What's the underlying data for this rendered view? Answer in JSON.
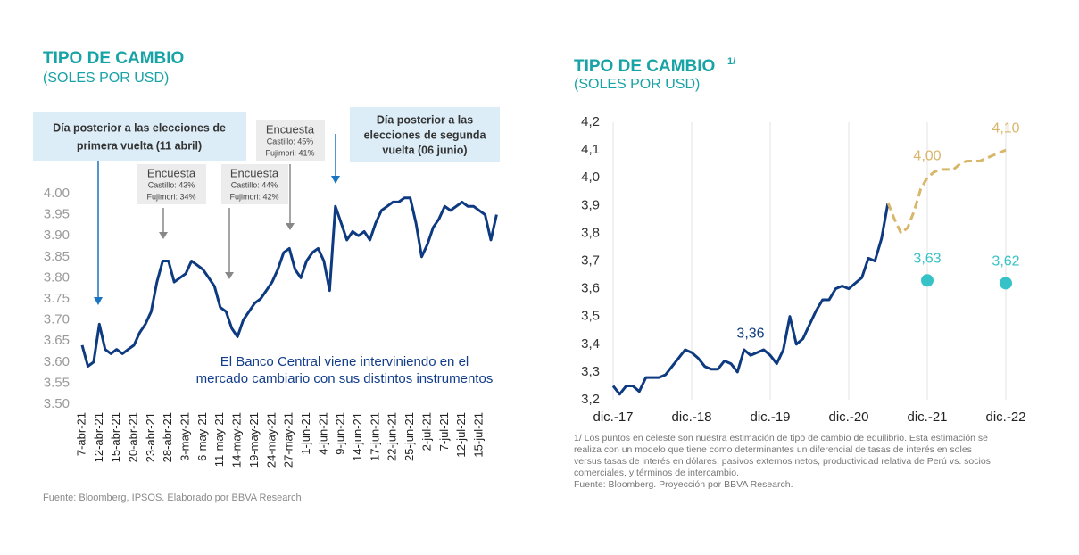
{
  "chart_data": [
    {
      "type": "line",
      "title": "TIPO DE CAMBIO",
      "subtitle": "(SOLES POR USD)",
      "source": "Fuente: Bloomberg, IPSOS. Elaborado por BBVA Research",
      "categories": [
        "7-abr-21",
        null,
        null,
        "12-abr-21",
        null,
        null,
        "15-abr-21",
        null,
        null,
        "20-abr-21",
        null,
        null,
        "23-abr-21",
        null,
        null,
        "28-abr-21",
        null,
        null,
        "3-may-21",
        null,
        null,
        "6-may-21",
        null,
        null,
        "11-may-21",
        null,
        null,
        "14-may-21",
        null,
        null,
        "19-may-21",
        null,
        null,
        "24-may-21",
        null,
        null,
        "27-may-21",
        null,
        null,
        "1-jun-21",
        null,
        null,
        "4-jun-21",
        null,
        null,
        "9-jun-21",
        null,
        null,
        "14-jun-21",
        null,
        null,
        "17-jun-21",
        null,
        null,
        "22-jun-21",
        null,
        null,
        "25-jun-21",
        null,
        null,
        "2-jul-21",
        null,
        null,
        "7-jul-21",
        null,
        null,
        "12-jul-21",
        null,
        null,
        "15-jul-21",
        null,
        null,
        null
      ],
      "series": [
        {
          "color": "#0d3a80",
          "style": "solid",
          "values": [
            3.64,
            3.59,
            3.6,
            3.69,
            3.63,
            3.62,
            3.63,
            3.62,
            3.63,
            3.64,
            3.67,
            3.69,
            3.72,
            3.79,
            3.84,
            3.84,
            3.79,
            3.8,
            3.81,
            3.84,
            3.83,
            3.82,
            3.8,
            3.78,
            3.73,
            3.72,
            3.68,
            3.66,
            3.7,
            3.72,
            3.74,
            3.75,
            3.77,
            3.79,
            3.82,
            3.86,
            3.87,
            3.82,
            3.8,
            3.84,
            3.86,
            3.87,
            3.84,
            3.77,
            3.97,
            3.93,
            3.89,
            3.91,
            3.9,
            3.91,
            3.89,
            3.93,
            3.96,
            3.97,
            3.98,
            3.98,
            3.99,
            3.99,
            3.93,
            3.85,
            3.88,
            3.92,
            3.94,
            3.97,
            3.96,
            3.97,
            3.98,
            3.97,
            3.97,
            3.96,
            3.95,
            3.89,
            3.95
          ]
        }
      ],
      "ylim": [
        3.5,
        4.0
      ],
      "yticks": [
        {
          "value": 4.0,
          "label": "4.00"
        },
        3.95,
        {
          "value": 3.9,
          "label": "3.90"
        },
        3.85,
        {
          "value": 3.8,
          "label": "3.80"
        },
        3.75,
        {
          "value": 3.7,
          "label": "3.70"
        },
        3.65,
        {
          "value": 3.6,
          "label": "3.60"
        },
        3.55,
        {
          "value": 3.5,
          "label": "3.50"
        }
      ],
      "annotations": [
        {
          "lines": [
            "Día posterior a las elecciones de",
            "primera vuelta (11 abril)"
          ]
        },
        {
          "lines": [
            "Encuesta",
            "Castillo: 43%",
            "Fujimori: 34%"
          ]
        },
        {
          "lines": [
            "Encuesta",
            "Castillo: 44%",
            "Fujimori: 42%"
          ]
        },
        {
          "lines": [
            "Encuesta",
            "Castillo: 45%",
            "Fujimori: 41%"
          ]
        },
        {
          "lines": [
            "Día posterior a las",
            "elecciones de segunda",
            "vuelta (06 junio)"
          ]
        },
        {
          "lines": [
            "El Banco Central viene interviniendo en el",
            "mercado cambiario con sus distintos instrumentos"
          ]
        }
      ]
    },
    {
      "type": "line",
      "title": "TIPO DE CAMBIO",
      "title_note": "1/",
      "subtitle": "(SOLES POR USD)",
      "footnote": [
        "1/ Los puntos en celeste son nuestra estimación de tipo de cambio de equilibrio. Esta estimación se",
        "realiza con un modelo que tiene como determinantes un diferencial de tasas de interés en soles",
        "versus tasas de interés en dólares, pasivos externos netos, productividad relativa de Perú vs. socios",
        "comerciales, y términos de intercambio.",
        "Fuente: Bloomberg. Proyección por  BBVA Research."
      ],
      "categories": [
        "dic.-17",
        null,
        null,
        null,
        null,
        null,
        null,
        null,
        null,
        null,
        null,
        null,
        "dic.-18",
        null,
        null,
        null,
        null,
        null,
        null,
        null,
        null,
        null,
        null,
        null,
        "dic.-19",
        null,
        null,
        null,
        null,
        null,
        null,
        null,
        null,
        null,
        null,
        null,
        "dic.-20",
        null,
        null,
        null,
        null,
        null,
        null,
        null,
        null,
        null,
        null,
        null,
        "dic.-21",
        null,
        null,
        null,
        null,
        null,
        null,
        null,
        null,
        null,
        null,
        null,
        "dic.-22"
      ],
      "series": [
        {
          "color": "#0d3a80",
          "style": "solid",
          "values": [
            3.25,
            3.22,
            3.25,
            3.25,
            3.23,
            3.28,
            3.28,
            3.28,
            3.29,
            3.32,
            3.35,
            3.38,
            3.37,
            3.35,
            3.32,
            3.31,
            3.31,
            3.34,
            3.33,
            3.3,
            3.38,
            3.36,
            3.37,
            3.38,
            3.36,
            3.33,
            3.38,
            3.5,
            3.4,
            3.42,
            3.47,
            3.52,
            3.56,
            3.56,
            3.6,
            3.61,
            3.6,
            3.62,
            3.64,
            3.71,
            3.7,
            3.78,
            3.91,
            null,
            null,
            null,
            null,
            null,
            null,
            null,
            null,
            null,
            null,
            null,
            null,
            null,
            null,
            null,
            null,
            null,
            null
          ],
          "value_labels": [
            null,
            null,
            null,
            null,
            null,
            null,
            null,
            null,
            null,
            null,
            null,
            null,
            null,
            null,
            null,
            null,
            null,
            null,
            null,
            null,
            null,
            "3,36",
            null,
            null,
            null,
            null,
            null,
            null,
            null,
            null,
            null,
            null,
            null,
            null,
            null,
            null,
            null,
            null,
            null,
            null,
            null,
            null,
            null,
            null,
            null,
            null,
            null,
            null,
            null,
            null,
            null,
            null,
            null,
            null,
            null,
            null,
            null,
            null,
            null,
            null,
            null
          ]
        },
        {
          "color": "#d8b66a",
          "style": "dashed",
          "values": [
            null,
            null,
            null,
            null,
            null,
            null,
            null,
            null,
            null,
            null,
            null,
            null,
            null,
            null,
            null,
            null,
            null,
            null,
            null,
            null,
            null,
            null,
            null,
            null,
            null,
            null,
            null,
            null,
            null,
            null,
            null,
            null,
            null,
            null,
            null,
            null,
            null,
            null,
            null,
            null,
            null,
            null,
            3.91,
            3.85,
            3.8,
            3.82,
            3.88,
            3.96,
            4.0,
            4.02,
            4.03,
            4.03,
            4.03,
            4.05,
            4.06,
            4.06,
            4.06,
            4.07,
            4.08,
            4.09,
            4.1
          ],
          "value_labels": [
            null,
            null,
            null,
            null,
            null,
            null,
            null,
            null,
            null,
            null,
            null,
            null,
            null,
            null,
            null,
            null,
            null,
            null,
            null,
            null,
            null,
            null,
            null,
            null,
            null,
            null,
            null,
            null,
            null,
            null,
            null,
            null,
            null,
            null,
            null,
            null,
            null,
            null,
            null,
            null,
            null,
            null,
            null,
            null,
            null,
            null,
            null,
            null,
            "4,00",
            null,
            null,
            null,
            null,
            null,
            null,
            null,
            null,
            null,
            null,
            null,
            "4,10"
          ]
        },
        {
          "color": "#36c2c6",
          "style": "dots",
          "values": [
            null,
            null,
            null,
            null,
            null,
            null,
            null,
            null,
            null,
            null,
            null,
            null,
            null,
            null,
            null,
            null,
            null,
            null,
            null,
            null,
            null,
            null,
            null,
            null,
            null,
            null,
            null,
            null,
            null,
            null,
            null,
            null,
            null,
            null,
            null,
            null,
            null,
            null,
            null,
            null,
            null,
            null,
            null,
            null,
            null,
            null,
            null,
            null,
            3.63,
            null,
            null,
            null,
            null,
            null,
            null,
            null,
            null,
            null,
            null,
            null,
            3.62
          ],
          "value_labels": [
            null,
            null,
            null,
            null,
            null,
            null,
            null,
            null,
            null,
            null,
            null,
            null,
            null,
            null,
            null,
            null,
            null,
            null,
            null,
            null,
            null,
            null,
            null,
            null,
            null,
            null,
            null,
            null,
            null,
            null,
            null,
            null,
            null,
            null,
            null,
            null,
            null,
            null,
            null,
            null,
            null,
            null,
            null,
            null,
            null,
            null,
            null,
            null,
            "3,63",
            null,
            null,
            null,
            null,
            null,
            null,
            null,
            null,
            null,
            null,
            null,
            "3,62"
          ]
        }
      ],
      "ylim": [
        3.2,
        4.2
      ],
      "yticks": [
        {
          "value": 4.2,
          "label": "4,2"
        },
        {
          "value": 4.1,
          "label": "4,1"
        },
        {
          "value": 4.0,
          "label": "4,0"
        },
        {
          "value": 3.9,
          "label": "3,9"
        },
        {
          "value": 3.8,
          "label": "3,8"
        },
        {
          "value": 3.7,
          "label": "3,7"
        },
        {
          "value": 3.6,
          "label": "3,6"
        },
        {
          "value": 3.5,
          "label": "3,5"
        },
        {
          "value": 3.4,
          "label": "3,4"
        },
        {
          "value": 3.3,
          "label": "3,3"
        },
        {
          "value": 3.2,
          "label": "3,2"
        }
      ],
      "xgrid": true
    }
  ]
}
